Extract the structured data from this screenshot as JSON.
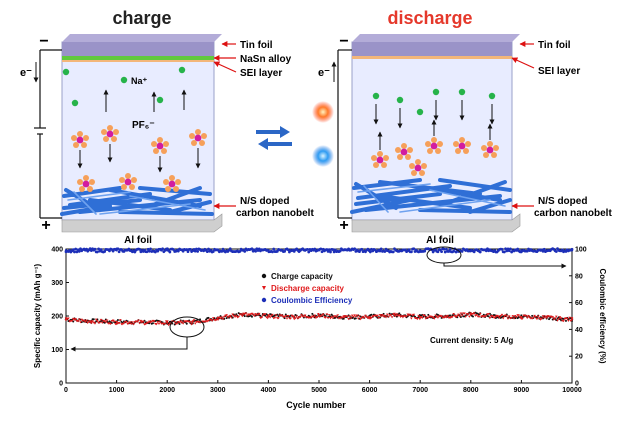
{
  "top": {
    "charge": {
      "title": "charge",
      "minus": "−",
      "plus": "+",
      "electron": "e⁻",
      "layers": {
        "tin": "Tin foil",
        "alloy": "NaSn alloy",
        "sei": "SEI layer"
      },
      "ion_na": "Na⁺",
      "ion_pf6": "PF₆⁻",
      "bottom_label_1": "N/S doped",
      "bottom_label_2": "carbon nanobelt",
      "foil": "Al foil"
    },
    "discharge": {
      "title": "discharge",
      "minus": "−",
      "plus": "+",
      "electron": "e⁻",
      "layers": {
        "tin": "Tin foil",
        "sei": "SEI layer"
      },
      "bottom_label_1": "N/S doped",
      "bottom_label_2": "carbon nanobelt",
      "foil": "Al foil"
    },
    "colors": {
      "cell_fill": "#e8ecff",
      "tin_foil": "#9a93c8",
      "nasn_alloy": "#61c93d",
      "sei": "#f3b67a",
      "na_ion": "#26b34a",
      "pf6_center": "#d21ca0",
      "pf6_lobes": "#f6a05a",
      "nanobelt": "#2f6fd6",
      "al_foil": "#c8c8c8",
      "arrow_blue": "#2b67c6",
      "charge_title": "#222222",
      "discharge_title": "#e5382b"
    }
  },
  "chart_data": {
    "type": "scatter",
    "xlabel": "Cycle number",
    "ylabel_left": "Specific capacity (mAh g⁻¹)",
    "ylabel_right": "Coulombic efficiency (%)",
    "xlim": [
      0,
      10000
    ],
    "ylim_left": [
      0,
      400
    ],
    "ylim_right": [
      0,
      100
    ],
    "x_ticks": [
      0,
      1000,
      2000,
      3000,
      4000,
      5000,
      6000,
      7000,
      8000,
      9000,
      10000
    ],
    "y_ticks_left": [
      0,
      100,
      200,
      300,
      400
    ],
    "y_ticks_right": [
      0,
      20,
      40,
      60,
      80,
      100
    ],
    "series": [
      {
        "name": "Charge capacity",
        "color": "#111111",
        "axis": "left",
        "x": [
          0,
          500,
          1000,
          1500,
          2000,
          2500,
          3000,
          3500,
          4000,
          4500,
          5000,
          5500,
          6000,
          6500,
          7000,
          7500,
          8000,
          8500,
          9000,
          9500,
          10000
        ],
        "y": [
          190,
          185,
          183,
          182,
          180,
          182,
          195,
          205,
          200,
          198,
          202,
          197,
          198,
          203,
          198,
          200,
          205,
          200,
          198,
          196,
          190
        ]
      },
      {
        "name": "Discharge capacity",
        "color": "#e0191b",
        "axis": "left",
        "x": [
          0,
          500,
          1000,
          1500,
          2000,
          2500,
          3000,
          3500,
          4000,
          4500,
          5000,
          5500,
          6000,
          6500,
          7000,
          7500,
          8000,
          8500,
          9000,
          9500,
          10000
        ],
        "y": [
          188,
          184,
          182,
          181,
          179,
          181,
          194,
          204,
          199,
          197,
          201,
          196,
          197,
          202,
          197,
          199,
          204,
          199,
          197,
          195,
          189
        ]
      },
      {
        "name": "Coulombic Efficiency",
        "color": "#1d2fb8",
        "axis": "right",
        "x": [
          0,
          1000,
          2000,
          3000,
          4000,
          5000,
          6000,
          7000,
          8000,
          9000,
          10000
        ],
        "y": [
          99,
          99,
          99,
          99,
          99,
          99,
          99,
          99,
          99,
          99,
          99
        ]
      }
    ],
    "annotation": "Current density: 5 A/g",
    "legend_position": "center"
  }
}
